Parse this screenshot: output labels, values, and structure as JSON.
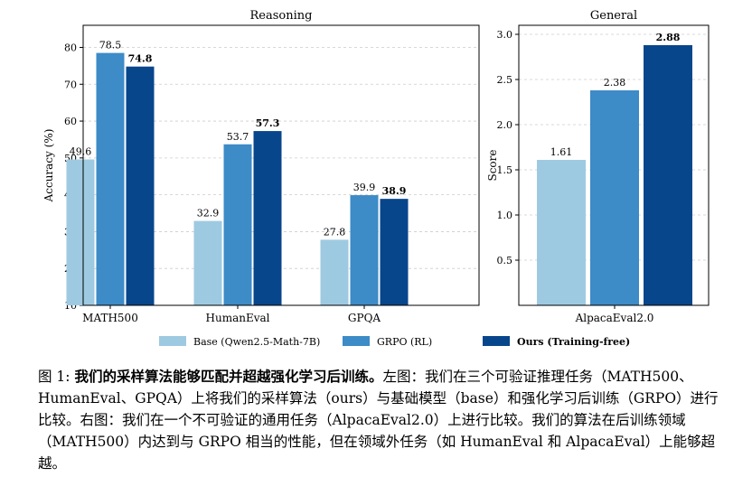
{
  "colors": {
    "base": "#9ecae1",
    "grpo": "#3d8bc7",
    "ours": "#08468c",
    "gridline": "#cccccc"
  },
  "chart_data": [
    {
      "type": "bar",
      "title": "Reasoning",
      "ylabel": "Accuracy (%)",
      "xlabel": "",
      "categories": [
        "MATH500",
        "HumanEval",
        "GPQA"
      ],
      "ylim": [
        10,
        86
      ],
      "yticks": [
        10,
        20,
        30,
        40,
        50,
        60,
        70,
        80
      ],
      "grid": true,
      "series": [
        {
          "name": "Base (Qwen2.5-Math-7B)",
          "values": [
            49.6,
            32.9,
            27.8
          ],
          "labels": [
            "49.6",
            "32.9",
            "27.8"
          ],
          "bold": false
        },
        {
          "name": "GRPO (RL)",
          "values": [
            78.5,
            53.7,
            39.9
          ],
          "labels": [
            "78.5",
            "53.7",
            "39.9"
          ],
          "bold": false
        },
        {
          "name": "Ours (Training-free)",
          "values": [
            74.8,
            57.3,
            38.9
          ],
          "labels": [
            "74.8",
            "57.3",
            "38.9"
          ],
          "bold": true
        }
      ]
    },
    {
      "type": "bar",
      "title": "General",
      "ylabel": "Score",
      "xlabel": "",
      "categories": [
        "AlpacaEval2.0"
      ],
      "ylim": [
        0,
        3.1
      ],
      "yticks": [
        "0.5",
        "1.0",
        "1.5",
        "2.0",
        "2.5",
        "3.0"
      ],
      "grid": true,
      "series": [
        {
          "name": "Base (Qwen2.5-Math-7B)",
          "values": [
            1.61
          ],
          "labels": [
            "1.61"
          ],
          "bold": false
        },
        {
          "name": "GRPO (RL)",
          "values": [
            2.38
          ],
          "labels": [
            "2.38"
          ],
          "bold": false
        },
        {
          "name": "Ours (Training-free)",
          "values": [
            2.88
          ],
          "labels": [
            "2.88"
          ],
          "bold": true
        }
      ]
    }
  ],
  "legend": {
    "placement": "bottom-center",
    "items": [
      "Base (Qwen2.5-Math-7B)",
      "GRPO (RL)",
      "Ours (Training-free)"
    ]
  },
  "caption": {
    "prefix": "图 1: ",
    "bold": "我们的采样算法能够匹配并超越强化学习后训练。",
    "text": "左图：我们在三个可验证推理任务（MATH500、HumanEval、GPQA）上将我们的采样算法（ours）与基础模型（base）和强化学习后训练（GRPO）进行比较。右图：我们在一个不可验证的通用任务（AlpacaEval2.0）上进行比较。我们的算法在后训练领域（MATH500）内达到与 GRPO 相当的性能，但在领域外任务（如 HumanEval 和 AlpacaEval）上能够超越。"
  }
}
